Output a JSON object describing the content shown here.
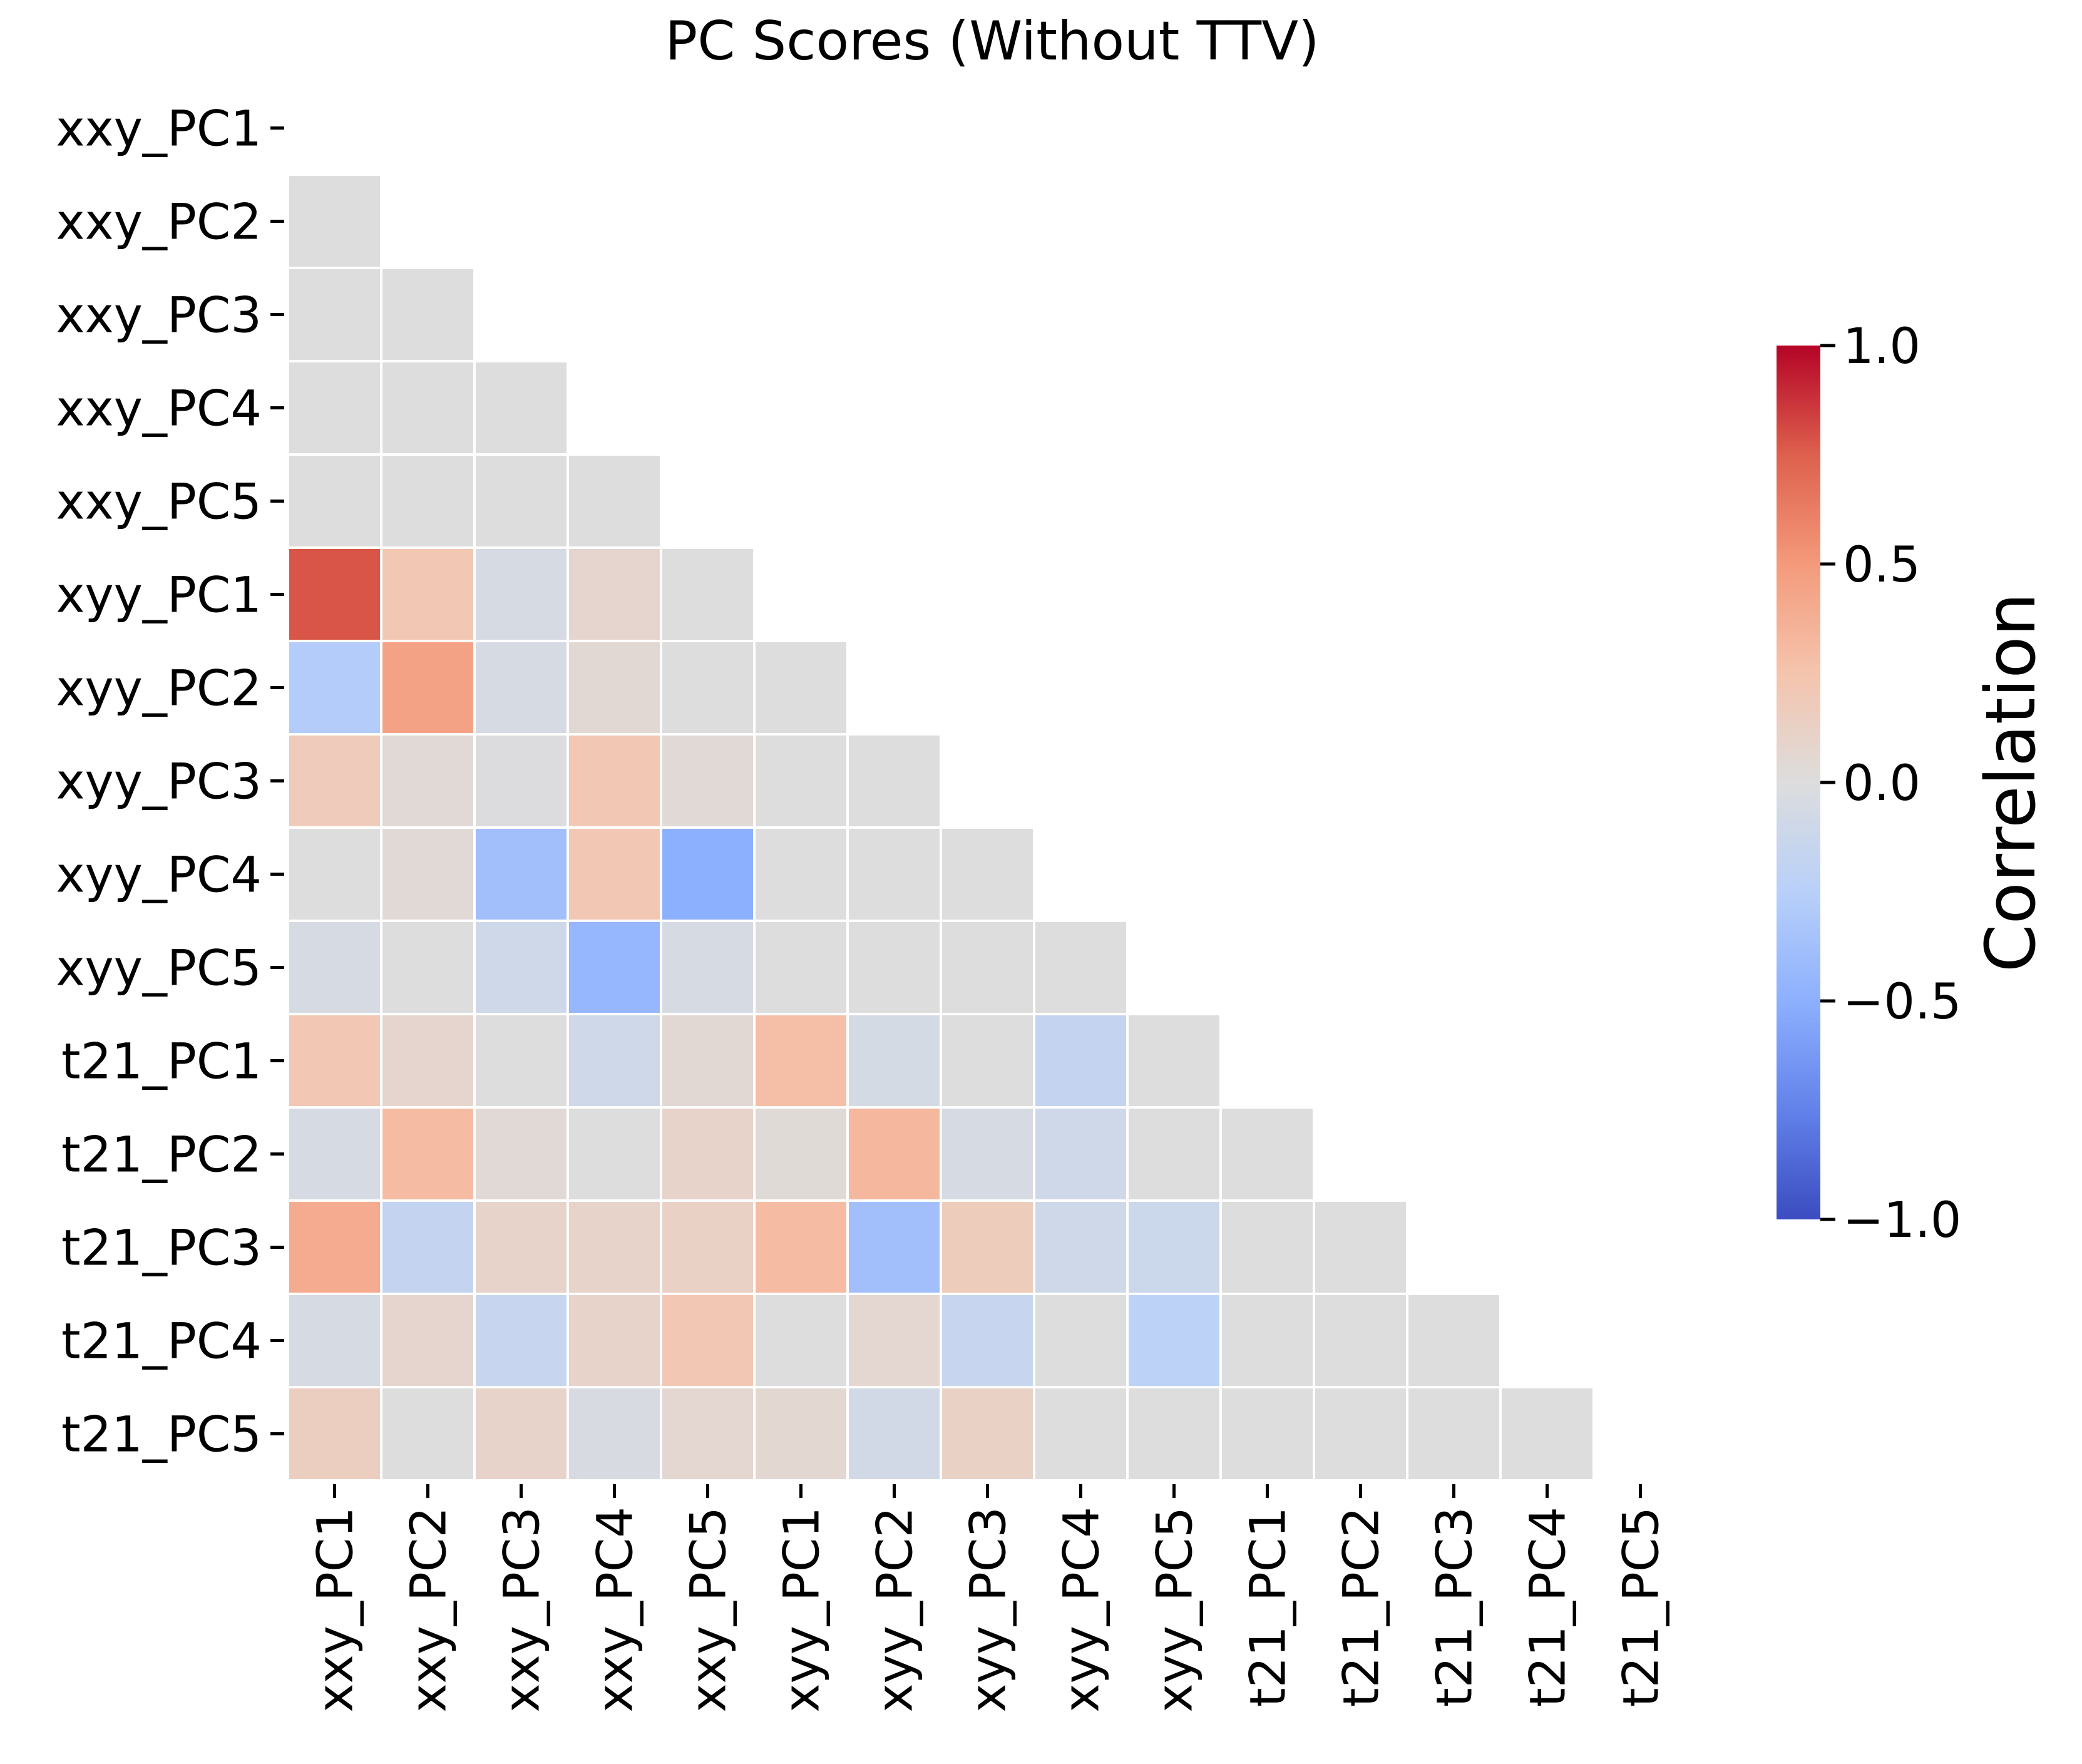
{
  "chart_data": {
    "type": "heatmap",
    "title": "PC Scores (Without TTV)",
    "xlabel": "",
    "ylabel": "",
    "labels": [
      "xxy_PC1",
      "xxy_PC2",
      "xxy_PC3",
      "xxy_PC4",
      "xxy_PC5",
      "xyy_PC1",
      "xyy_PC2",
      "xyy_PC3",
      "xyy_PC4",
      "xyy_PC5",
      "t21_PC1",
      "t21_PC2",
      "t21_PC3",
      "t21_PC4",
      "t21_PC5"
    ],
    "mask": "upper-triangle-including-diagonal",
    "matrix": [
      [
        null,
        null,
        null,
        null,
        null,
        null,
        null,
        null,
        null,
        null,
        null,
        null,
        null,
        null,
        null
      ],
      [
        0.0,
        null,
        null,
        null,
        null,
        null,
        null,
        null,
        null,
        null,
        null,
        null,
        null,
        null,
        null
      ],
      [
        0.0,
        0.0,
        null,
        null,
        null,
        null,
        null,
        null,
        null,
        null,
        null,
        null,
        null,
        null,
        null
      ],
      [
        0.0,
        0.0,
        0.0,
        null,
        null,
        null,
        null,
        null,
        null,
        null,
        null,
        null,
        null,
        null,
        null
      ],
      [
        0.0,
        0.0,
        0.0,
        0.0,
        null,
        null,
        null,
        null,
        null,
        null,
        null,
        null,
        null,
        null,
        null
      ],
      [
        0.78,
        0.22,
        -0.05,
        0.08,
        0.0,
        null,
        null,
        null,
        null,
        null,
        null,
        null,
        null,
        null,
        null
      ],
      [
        -0.28,
        0.45,
        -0.05,
        0.05,
        0.0,
        0.0,
        null,
        null,
        null,
        null,
        null,
        null,
        null,
        null,
        null
      ],
      [
        0.18,
        0.04,
        -0.01,
        0.22,
        0.04,
        0.0,
        0.0,
        null,
        null,
        null,
        null,
        null,
        null,
        null,
        null
      ],
      [
        0.0,
        0.04,
        -0.38,
        0.22,
        -0.5,
        0.0,
        0.0,
        0.0,
        null,
        null,
        null,
        null,
        null,
        null,
        null
      ],
      [
        -0.05,
        0.0,
        -0.1,
        -0.45,
        -0.05,
        0.0,
        0.0,
        0.0,
        0.0,
        null,
        null,
        null,
        null,
        null,
        null
      ],
      [
        0.22,
        0.08,
        0.0,
        -0.1,
        0.05,
        0.28,
        -0.06,
        0.0,
        -0.17,
        0.0,
        null,
        null,
        null,
        null,
        null
      ],
      [
        -0.05,
        0.3,
        0.04,
        0.0,
        0.1,
        0.03,
        0.32,
        -0.05,
        -0.1,
        0.0,
        0.0,
        null,
        null,
        null,
        null
      ],
      [
        0.4,
        -0.17,
        0.1,
        0.1,
        0.12,
        0.3,
        -0.38,
        0.17,
        -0.1,
        -0.12,
        0.0,
        0.0,
        null,
        null,
        null
      ],
      [
        -0.05,
        0.08,
        -0.15,
        0.1,
        0.22,
        0.0,
        0.07,
        -0.15,
        0.0,
        -0.22,
        0.0,
        0.0,
        0.0,
        null,
        null
      ],
      [
        0.15,
        0.0,
        0.1,
        -0.04,
        0.07,
        0.06,
        -0.08,
        0.12,
        0.0,
        0.0,
        0.0,
        0.0,
        0.0,
        0.0,
        null
      ]
    ],
    "colorbar": {
      "label": "Correlation",
      "vmin": -1.0,
      "vmax": 1.0,
      "ticks": [
        "1.0",
        "0.5",
        "0.0",
        "−0.5",
        "−1.0"
      ],
      "tick_values": [
        1.0,
        0.5,
        0.0,
        -0.5,
        -1.0
      ],
      "colormap": "coolwarm"
    },
    "colors": {
      "cell_border": "#ffffff",
      "text": "#000000"
    }
  }
}
